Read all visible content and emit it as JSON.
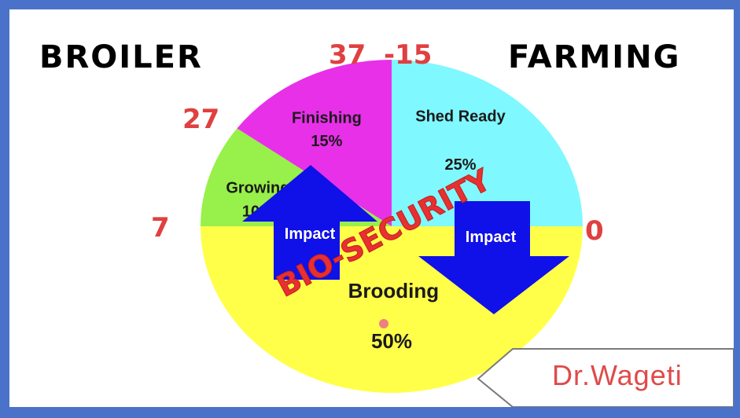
{
  "header": {
    "left_word": "BROILER",
    "right_word": "FARMING"
  },
  "day_labels": {
    "top_left": "37",
    "top_right": "-15",
    "left_upper": "27",
    "left": "7",
    "right": "0"
  },
  "chart_data": {
    "type": "pie",
    "slices": [
      {
        "label": "Shed Ready",
        "percent_label": "25%",
        "value": 25,
        "color": "#80f8ff"
      },
      {
        "label": "Brooding",
        "percent_label": "50%",
        "value": 50,
        "color": "#ffff4a"
      },
      {
        "label": "Growing",
        "percent_label": "10%",
        "value": 10,
        "color": "#98f04a"
      },
      {
        "label": "Finishing",
        "percent_label": "15%",
        "value": 15,
        "color": "#e830e8"
      }
    ],
    "annotations": [
      {
        "text": "BIO-SECURITY",
        "color": "#e83030"
      },
      {
        "text": "Impact",
        "direction": "up",
        "color": "#1010e8"
      },
      {
        "text": "Impact",
        "direction": "down",
        "color": "#1010e8"
      }
    ]
  },
  "author": "Dr.Wageti"
}
